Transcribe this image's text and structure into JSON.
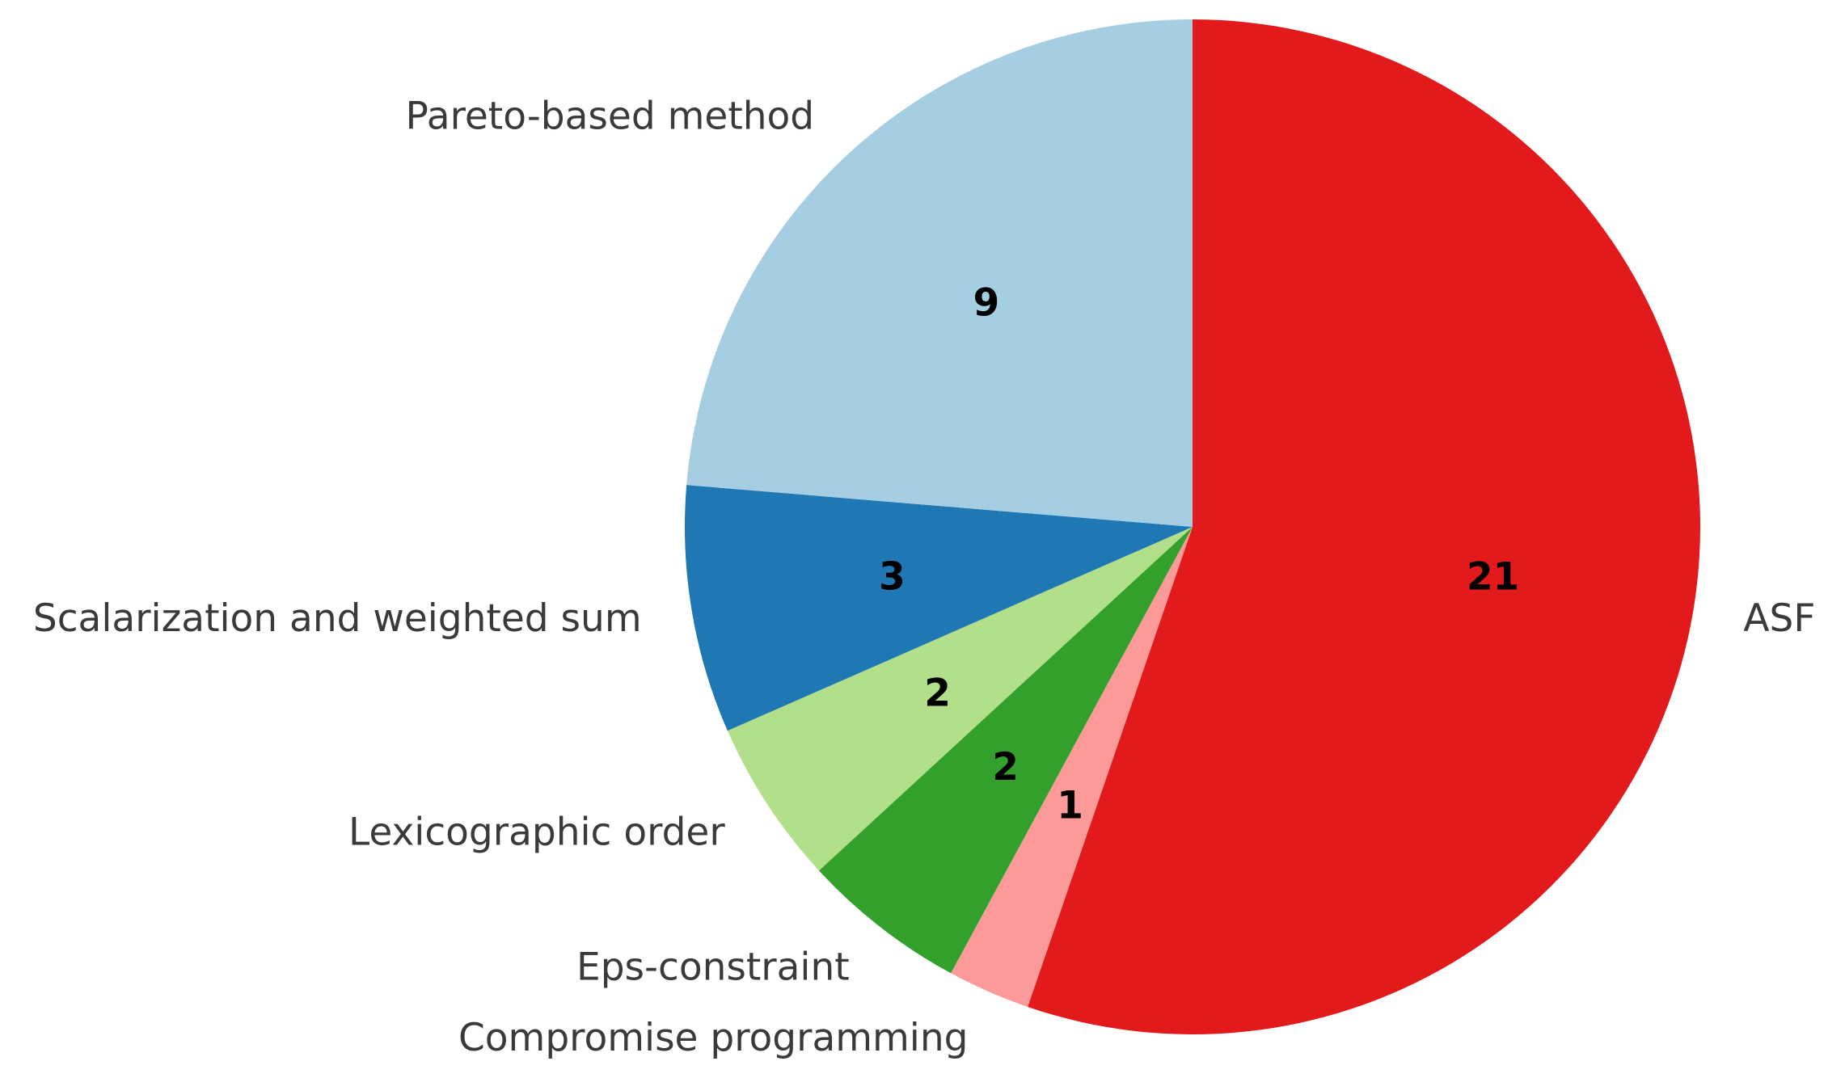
{
  "chart_data": {
    "type": "pie",
    "start_angle_deg": 90,
    "direction": "clockwise",
    "slices": [
      {
        "label": "ASF",
        "value": 21,
        "color": "#e31a1c"
      },
      {
        "label": "Compromise programming",
        "value": 1,
        "color": "#fb9a99"
      },
      {
        "label": "Eps-constraint",
        "value": 2,
        "color": "#33a02c"
      },
      {
        "label": "Lexicographic order",
        "value": 2,
        "color": "#b2df8a"
      },
      {
        "label": "Scalarization and weighted sum",
        "value": 3,
        "color": "#1f78b4"
      },
      {
        "label": "Pareto-based method",
        "value": 9,
        "color": "#a6cee3"
      }
    ]
  }
}
